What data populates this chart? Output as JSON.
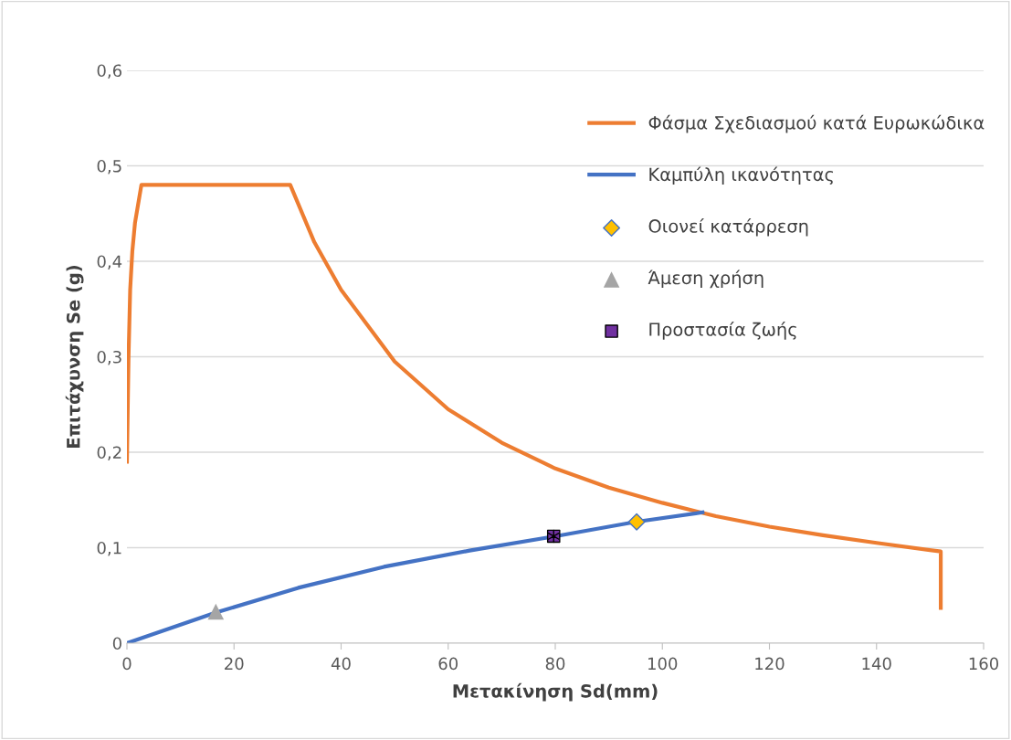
{
  "chart_data": {
    "type": "line",
    "xlabel": "Μετακίνηση Sd(mm)",
    "ylabel": "Επιτάχυνση Se (g)",
    "xlim": [
      0,
      160
    ],
    "xticks": [
      0,
      20,
      40,
      60,
      80,
      100,
      120,
      140,
      160
    ],
    "ylim": [
      0,
      0.6
    ],
    "yticks": [
      0,
      {
        "value": 0.1,
        "label": "0,1"
      },
      {
        "value": 0.2,
        "label": "0,2"
      },
      {
        "value": 0.3,
        "label": "0,3"
      },
      {
        "value": 0.4,
        "label": "0,4"
      },
      {
        "value": 0.5,
        "label": "0,5"
      },
      {
        "value": 0.6,
        "label": "0,6"
      }
    ],
    "grid": "y",
    "legend": "top right",
    "marker": "none",
    "series": [
      {
        "name": "Φάσμα Σχεδιασμού κατά Ευρωκώδικα",
        "color": "#ed7d31",
        "x": [
          0,
          0.3,
          0.6,
          1,
          1.5,
          2.7,
          30.5,
          35,
          40,
          50,
          60,
          70,
          80,
          90,
          100,
          110,
          120,
          130,
          140,
          152,
          152
        ],
        "values": [
          0.19,
          0.3,
          0.37,
          0.41,
          0.44,
          0.48,
          0.48,
          0.42,
          0.37,
          0.295,
          0.245,
          0.21,
          0.183,
          0.163,
          0.147,
          0.133,
          0.122,
          0.113,
          0.105,
          0.096,
          0.037
        ]
      },
      {
        "name": "Καμπύλη ικανότητας",
        "color": "#4472c4",
        "x": [
          0,
          16.6,
          32,
          48,
          64,
          80,
          95,
          107.5
        ],
        "values": [
          0,
          0.032,
          0.058,
          0.08,
          0.097,
          0.112,
          0.127,
          0.137
        ]
      },
      {
        "name": "Οιονεί κατάρρεση",
        "type": "scatter",
        "marker": "diamond",
        "color": "#ffc000",
        "x": [
          95.2
        ],
        "values": [
          0.127
        ]
      },
      {
        "name": "Άμεση χρήση",
        "type": "scatter",
        "marker": "triangle",
        "color": "#a5a5a5",
        "x": [
          16.6
        ],
        "values": [
          0.033
        ]
      },
      {
        "name": "Προστασία ζωής",
        "type": "scatter",
        "marker": "square",
        "color": "#7030a0",
        "x": [
          79.7
        ],
        "values": [
          0.112
        ]
      }
    ]
  }
}
